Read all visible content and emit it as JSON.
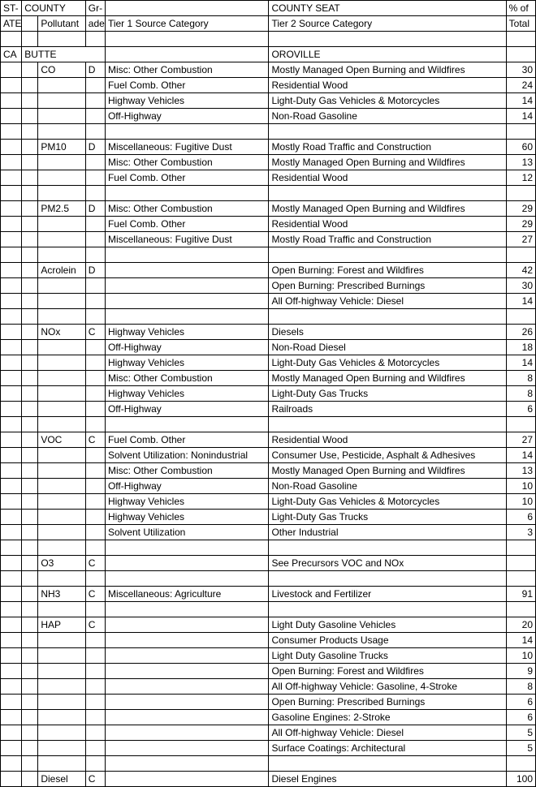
{
  "headers": {
    "r1": {
      "state": "ST-",
      "county": "COUNTY",
      "grade": "Gr-",
      "seat": "COUNTY SEAT",
      "pct": "% of"
    },
    "r2": {
      "ate": "ATE",
      "pollutant": "Pollutant",
      "ade": "ade",
      "tier1": "Tier 1 Source Category",
      "tier2": "Tier 2 Source Category",
      "total": "Total"
    }
  },
  "county": {
    "state": "CA",
    "name": "BUTTE",
    "seat": "OROVILLE"
  },
  "groups": [
    {
      "pollutant": "CO",
      "grade": "D",
      "rows": [
        {
          "t1": "Misc: Other Combustion",
          "t2": "Mostly Managed Open Burning and Wildfires",
          "pct": "30"
        },
        {
          "t1": "Fuel Comb. Other",
          "t2": "Residential Wood",
          "pct": "24"
        },
        {
          "t1": "Highway Vehicles",
          "t2": "Light-Duty Gas Vehicles & Motorcycles",
          "pct": "14"
        },
        {
          "t1": "Off-Highway",
          "t2": "Non-Road Gasoline",
          "pct": "14"
        }
      ]
    },
    {
      "pollutant": "PM10",
      "grade": "D",
      "rows": [
        {
          "t1": "Miscellaneous: Fugitive Dust",
          "t2": "Mostly Road Traffic and Construction",
          "pct": "60"
        },
        {
          "t1": "Misc: Other Combustion",
          "t2": "Mostly Managed Open Burning and Wildfires",
          "pct": "13"
        },
        {
          "t1": "Fuel Comb. Other",
          "t2": "Residential Wood",
          "pct": "12"
        }
      ]
    },
    {
      "pollutant": "PM2.5",
      "grade": "D",
      "rows": [
        {
          "t1": "Misc: Other Combustion",
          "t2": "Mostly Managed Open Burning and Wildfires",
          "pct": "29"
        },
        {
          "t1": "Fuel Comb. Other",
          "t2": "Residential Wood",
          "pct": "29"
        },
        {
          "t1": "Miscellaneous: Fugitive Dust",
          "t2": "Mostly Road Traffic and Construction",
          "pct": "27"
        }
      ]
    },
    {
      "pollutant": "Acrolein",
      "grade": "D",
      "rows": [
        {
          "t1": "",
          "t2": "Open Burning:  Forest and Wildfires",
          "pct": "42"
        },
        {
          "t1": "",
          "t2": "Open Burning:  Prescribed Burnings",
          "pct": "30"
        },
        {
          "t1": "",
          "t2": "All Off-highway Vehicle: Diesel",
          "pct": "14"
        }
      ]
    },
    {
      "pollutant": "NOx",
      "grade": "C",
      "rows": [
        {
          "t1": "Highway Vehicles",
          "t2": "Diesels",
          "pct": "26"
        },
        {
          "t1": "Off-Highway",
          "t2": "Non-Road Diesel",
          "pct": "18"
        },
        {
          "t1": "Highway Vehicles",
          "t2": "Light-Duty Gas Vehicles & Motorcycles",
          "pct": "14"
        },
        {
          "t1": "Misc: Other Combustion",
          "t2": "Mostly Managed Open Burning and Wildfires",
          "pct": "8"
        },
        {
          "t1": "Highway Vehicles",
          "t2": "Light-Duty Gas Trucks",
          "pct": "8"
        },
        {
          "t1": "Off-Highway",
          "t2": "Railroads",
          "pct": "6"
        }
      ]
    },
    {
      "pollutant": "VOC",
      "grade": "C",
      "rows": [
        {
          "t1": "Fuel Comb. Other",
          "t2": "Residential Wood",
          "pct": "27"
        },
        {
          "t1": "Solvent Utilization: Nonindustrial",
          "t2": "Consumer Use, Pesticide, Asphalt & Adhesives",
          "pct": "14"
        },
        {
          "t1": "Misc: Other Combustion",
          "t2": "Mostly Managed Open Burning and Wildfires",
          "pct": "13"
        },
        {
          "t1": "Off-Highway",
          "t2": "Non-Road Gasoline",
          "pct": "10"
        },
        {
          "t1": "Highway Vehicles",
          "t2": "Light-Duty Gas Vehicles & Motorcycles",
          "pct": "10"
        },
        {
          "t1": "Highway Vehicles",
          "t2": "Light-Duty Gas Trucks",
          "pct": "6"
        },
        {
          "t1": "Solvent Utilization",
          "t2": "Other Industrial",
          "pct": "3"
        }
      ]
    },
    {
      "pollutant": "O3",
      "grade": "C",
      "rows": [
        {
          "t1": "",
          "t2": "See Precursors VOC and NOx",
          "pct": ""
        }
      ]
    },
    {
      "pollutant": "NH3",
      "grade": "C",
      "rows": [
        {
          "t1": "Miscellaneous: Agriculture",
          "t2": "Livestock and Fertilizer",
          "pct": "91"
        }
      ]
    },
    {
      "pollutant": "HAP",
      "grade": "C",
      "rows": [
        {
          "t1": "",
          "t2": "Light Duty Gasoline Vehicles",
          "pct": "20"
        },
        {
          "t1": "",
          "t2": "Consumer Products Usage",
          "pct": "14"
        },
        {
          "t1": "",
          "t2": "Light Duty Gasoline Trucks",
          "pct": "10"
        },
        {
          "t1": "",
          "t2": "Open Burning:  Forest and Wildfires",
          "pct": "9"
        },
        {
          "t1": "",
          "t2": "All Off-highway Vehicle: Gasoline, 4-Stroke",
          "pct": "8"
        },
        {
          "t1": "",
          "t2": "Open Burning:  Prescribed Burnings",
          "pct": "6"
        },
        {
          "t1": "",
          "t2": "Gasoline Engines: 2-Stroke",
          "pct": "6"
        },
        {
          "t1": "",
          "t2": "All Off-highway Vehicle: Diesel",
          "pct": "5"
        },
        {
          "t1": "",
          "t2": "Surface Coatings:  Architectural",
          "pct": "5"
        }
      ]
    },
    {
      "pollutant": "Diesel",
      "grade": "C",
      "rows": [
        {
          "t1": "",
          "t2": "Diesel Engines",
          "pct": "100"
        }
      ]
    }
  ]
}
